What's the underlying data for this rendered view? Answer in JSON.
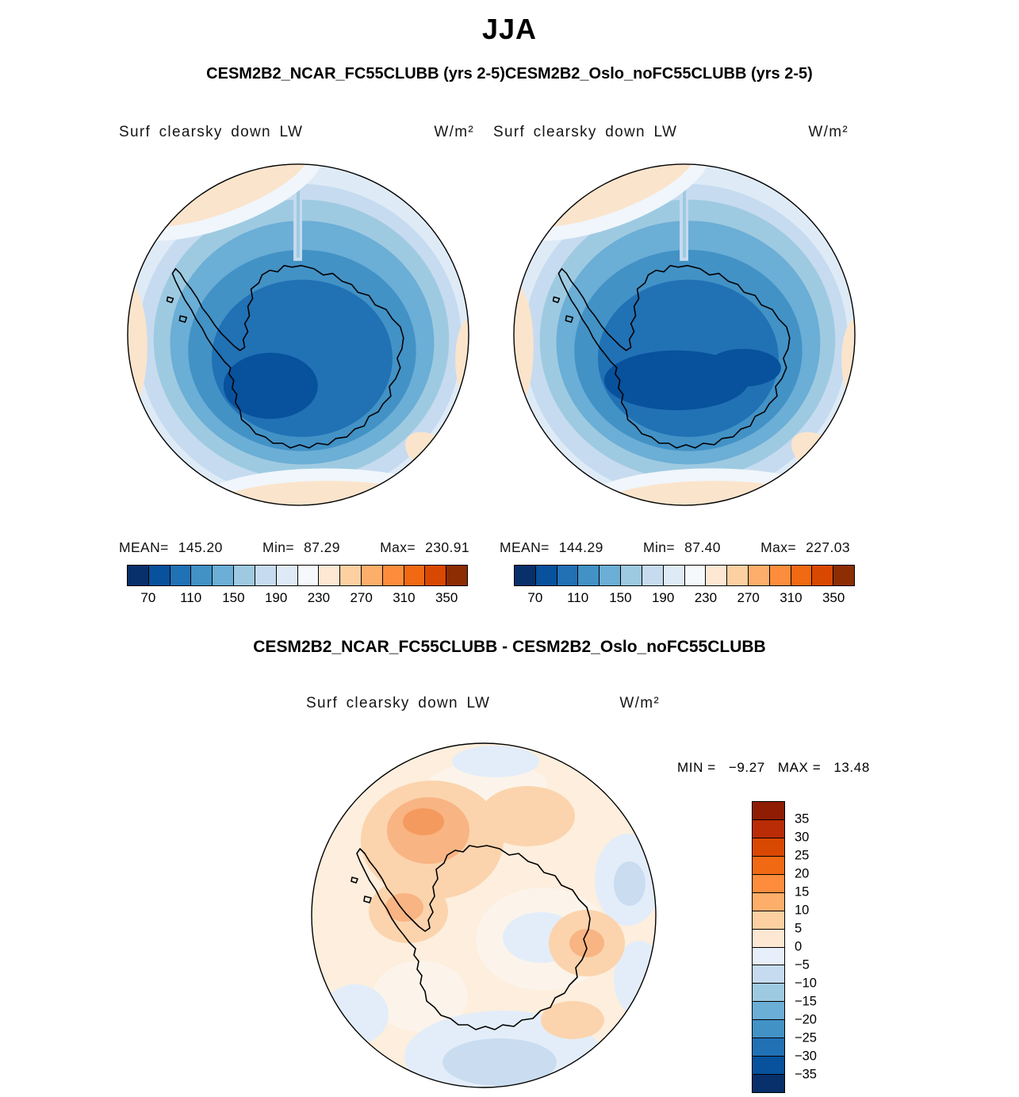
{
  "title": "JJA",
  "subtitle": "CESM2B2_NCAR_FC55CLUBB (yrs 2-5)CESM2B2_Oslo_noFC55CLUBB (yrs 2-5)",
  "diff_header": "CESM2B2_NCAR_FC55CLUBB - CESM2B2_Oslo_noFC55CLUBB",
  "panel_left": {
    "var_label": "Surf clearsky down LW",
    "units": "W/m²",
    "stats": {
      "mean_label": "MEAN=",
      "mean": "145.20",
      "min_label": "Min=",
      "min": "87.29",
      "max_label": "Max=",
      "max": "230.91"
    },
    "colorbar": {
      "colors": [
        "#08306b",
        "#08519c",
        "#2171b5",
        "#4292c6",
        "#6baed6",
        "#9ecae1",
        "#c6dbef",
        "#deebf7",
        "#f6f9fc",
        "#fee8d4",
        "#fdd0a2",
        "#fdae6b",
        "#fd8d3c",
        "#f16913",
        "#d94801",
        "#8c2d04"
      ],
      "ticks": [
        {
          "label": "70",
          "pos": 0.0625
        },
        {
          "label": "110",
          "pos": 0.1875
        },
        {
          "label": "150",
          "pos": 0.3125
        },
        {
          "label": "190",
          "pos": 0.4375
        },
        {
          "label": "230",
          "pos": 0.5625
        },
        {
          "label": "270",
          "pos": 0.6875
        },
        {
          "label": "310",
          "pos": 0.8125
        },
        {
          "label": "350",
          "pos": 0.9375
        }
      ]
    }
  },
  "panel_right": {
    "var_label": "Surf clearsky down LW",
    "units": "W/m²",
    "stats": {
      "mean_label": "MEAN=",
      "mean": "144.29",
      "min_label": "Min=",
      "min": "87.40",
      "max_label": "Max=",
      "max": "227.03"
    },
    "colorbar": {
      "colors": [
        "#08306b",
        "#08519c",
        "#2171b5",
        "#4292c6",
        "#6baed6",
        "#9ecae1",
        "#c6dbef",
        "#deebf7",
        "#f6f9fc",
        "#fee8d4",
        "#fdd0a2",
        "#fdae6b",
        "#fd8d3c",
        "#f16913",
        "#d94801",
        "#8c2d04"
      ],
      "ticks": [
        {
          "label": "70",
          "pos": 0.0625
        },
        {
          "label": "110",
          "pos": 0.1875
        },
        {
          "label": "150",
          "pos": 0.3125
        },
        {
          "label": "190",
          "pos": 0.4375
        },
        {
          "label": "230",
          "pos": 0.5625
        },
        {
          "label": "270",
          "pos": 0.6875
        },
        {
          "label": "310",
          "pos": 0.8125
        },
        {
          "label": "350",
          "pos": 0.9375
        }
      ]
    }
  },
  "panel_diff": {
    "var_label": "Surf clearsky down LW",
    "units": "W/m²",
    "stats": {
      "min_label": "MIN =",
      "min": "−9.27",
      "max_label": "MAX =",
      "max": "13.48"
    },
    "colorbar": {
      "colors": [
        "#8f1d04",
        "#b92c05",
        "#d94801",
        "#f16913",
        "#fd8d3c",
        "#fdae6b",
        "#fdd0a2",
        "#fee8d4",
        "#e7f0fa",
        "#c6dbef",
        "#9ecae1",
        "#6baed6",
        "#4292c6",
        "#2171b5",
        "#08519c",
        "#08306b"
      ],
      "ticks": [
        {
          "label": "35",
          "pos": 0.0625
        },
        {
          "label": "30",
          "pos": 0.125
        },
        {
          "label": "25",
          "pos": 0.1875
        },
        {
          "label": "20",
          "pos": 0.25
        },
        {
          "label": "15",
          "pos": 0.3125
        },
        {
          "label": "10",
          "pos": 0.375
        },
        {
          "label": "5",
          "pos": 0.4375
        },
        {
          "label": "0",
          "pos": 0.5
        },
        {
          "label": "−5",
          "pos": 0.5625
        },
        {
          "label": "−10",
          "pos": 0.625
        },
        {
          "label": "−15",
          "pos": 0.6875
        },
        {
          "label": "−20",
          "pos": 0.75
        },
        {
          "label": "−25",
          "pos": 0.8125
        },
        {
          "label": "−30",
          "pos": 0.875
        },
        {
          "label": "−35",
          "pos": 0.9375
        }
      ]
    }
  },
  "chart_data": [
    {
      "type": "heatmap",
      "season": "JJA",
      "model": "CESM2B2_NCAR_FC55CLUBB (yrs 2-5)",
      "title": "Surf clearsky down LW",
      "units": "W/m²",
      "projection": "south-polar",
      "stats": {
        "mean": 145.2,
        "min": 87.29,
        "max": 230.91
      },
      "colorbar_ticks": [
        70,
        110,
        150,
        190,
        230,
        270,
        310,
        350
      ],
      "legend_position": "bottom"
    },
    {
      "type": "heatmap",
      "season": "JJA",
      "model": "CESM2B2_Oslo_noFC55CLUBB (yrs 2-5)",
      "title": "Surf clearsky down LW",
      "units": "W/m²",
      "projection": "south-polar",
      "stats": {
        "mean": 144.29,
        "min": 87.4,
        "max": 227.03
      },
      "colorbar_ticks": [
        70,
        110,
        150,
        190,
        230,
        270,
        310,
        350
      ],
      "legend_position": "bottom"
    },
    {
      "type": "heatmap",
      "season": "JJA",
      "model": "CESM2B2_NCAR_FC55CLUBB - CESM2B2_Oslo_noFC55CLUBB",
      "title": "Surf clearsky down LW",
      "units": "W/m²",
      "projection": "south-polar",
      "stats": {
        "min": -9.27,
        "max": 13.48
      },
      "colorbar_ticks": [
        35,
        30,
        25,
        20,
        15,
        10,
        5,
        0,
        -5,
        -10,
        -15,
        -20,
        -25,
        -30,
        -35
      ],
      "legend_position": "right"
    }
  ]
}
